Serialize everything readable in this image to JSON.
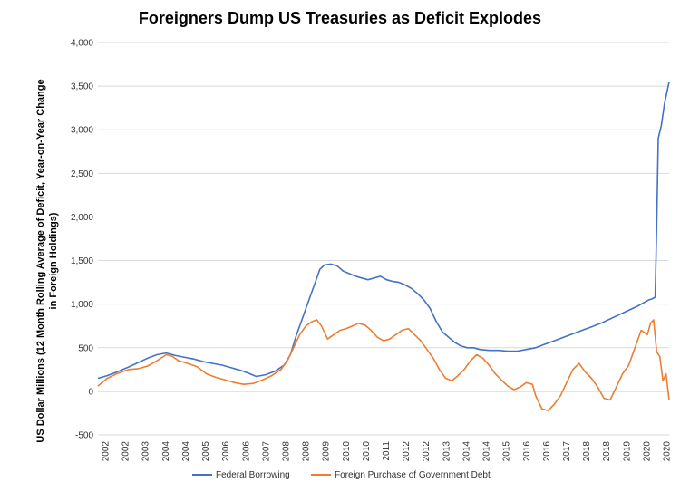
{
  "chart_data": {
    "type": "line",
    "title": "Foreigners Dump US Treasuries as Deficit Explodes",
    "ylabel_line1": "US Dollar Millions (12 Month Rolling Average of Deficit, Year-on-Year Change",
    "ylabel_line2": "in Foreign Holdings)",
    "xlabel": "",
    "ylim": [
      -500,
      4000
    ],
    "xlim": [
      2002,
      2020.4
    ],
    "y_ticks": [
      "-500",
      "0",
      "500",
      "1,000",
      "1,500",
      "2,000",
      "2,500",
      "3,000",
      "3,500",
      "4,000"
    ],
    "x_ticks": [
      "2002",
      "2002",
      "2003",
      "2004",
      "2004",
      "2005",
      "2006",
      "2006",
      "2007",
      "2008",
      "2008",
      "2009",
      "2010",
      "2010",
      "2011",
      "2012",
      "2012",
      "2013",
      "2014",
      "2014",
      "2015",
      "2016",
      "2016",
      "2017",
      "2018",
      "2018",
      "2019",
      "2020",
      "2020"
    ],
    "grid": "horizontal",
    "legend_position": "bottom",
    "series": [
      {
        "name": "Federal Borrowing",
        "color": "#4472C4",
        "x": [
          2002.0,
          2002.3,
          2002.6,
          2003.0,
          2003.3,
          2003.6,
          2003.9,
          2004.2,
          2004.5,
          2004.8,
          2005.1,
          2005.4,
          2005.7,
          2006.0,
          2006.3,
          2006.6,
          2006.9,
          2007.1,
          2007.4,
          2007.7,
          2008.0,
          2008.2,
          2008.4,
          2008.6,
          2008.8,
          2009.0,
          2009.15,
          2009.3,
          2009.5,
          2009.7,
          2009.9,
          2010.1,
          2010.3,
          2010.5,
          2010.7,
          2010.9,
          2011.1,
          2011.3,
          2011.5,
          2011.7,
          2011.9,
          2012.1,
          2012.3,
          2012.5,
          2012.7,
          2012.9,
          2013.1,
          2013.3,
          2013.5,
          2013.7,
          2013.9,
          2014.1,
          2014.3,
          2014.6,
          2014.9,
          2015.2,
          2015.5,
          2015.8,
          2016.1,
          2016.4,
          2016.7,
          2017.0,
          2017.3,
          2017.6,
          2017.9,
          2018.2,
          2018.5,
          2018.8,
          2019.1,
          2019.4,
          2019.6,
          2019.75,
          2019.85,
          2019.95,
          2020.0,
          2020.05,
          2020.15,
          2020.25,
          2020.4
        ],
        "values": [
          150,
          180,
          220,
          280,
          330,
          380,
          420,
          440,
          410,
          390,
          370,
          340,
          320,
          300,
          270,
          240,
          200,
          170,
          190,
          230,
          300,
          420,
          650,
          850,
          1050,
          1250,
          1400,
          1450,
          1460,
          1440,
          1380,
          1350,
          1320,
          1300,
          1280,
          1300,
          1320,
          1280,
          1260,
          1250,
          1220,
          1180,
          1120,
          1050,
          950,
          800,
          680,
          620,
          560,
          520,
          500,
          500,
          480,
          470,
          470,
          460,
          460,
          480,
          500,
          540,
          580,
          620,
          660,
          700,
          740,
          780,
          830,
          880,
          930,
          980,
          1020,
          1050,
          1060,
          1080,
          1900,
          2900,
          3050,
          3300,
          3550
        ]
      },
      {
        "name": "Foreign Purchase of Government Debt",
        "color": "#ED7D31",
        "x": [
          2002.0,
          2002.3,
          2002.6,
          2003.0,
          2003.3,
          2003.6,
          2003.9,
          2004.2,
          2004.4,
          2004.6,
          2004.9,
          2005.2,
          2005.5,
          2005.8,
          2006.1,
          2006.4,
          2006.7,
          2007.0,
          2007.3,
          2007.6,
          2007.9,
          2008.1,
          2008.3,
          2008.5,
          2008.7,
          2008.9,
          2009.05,
          2009.2,
          2009.4,
          2009.6,
          2009.8,
          2010.0,
          2010.2,
          2010.4,
          2010.6,
          2010.8,
          2011.0,
          2011.2,
          2011.4,
          2011.6,
          2011.8,
          2012.0,
          2012.2,
          2012.4,
          2012.6,
          2012.8,
          2013.0,
          2013.2,
          2013.4,
          2013.6,
          2013.8,
          2014.0,
          2014.2,
          2014.4,
          2014.6,
          2014.8,
          2015.0,
          2015.2,
          2015.4,
          2015.6,
          2015.8,
          2016.0,
          2016.1,
          2016.3,
          2016.5,
          2016.7,
          2016.9,
          2017.1,
          2017.3,
          2017.5,
          2017.7,
          2017.9,
          2018.1,
          2018.3,
          2018.5,
          2018.7,
          2018.9,
          2019.1,
          2019.3,
          2019.5,
          2019.7,
          2019.8,
          2019.9,
          2020.0,
          2020.1,
          2020.2,
          2020.3,
          2020.4
        ],
        "values": [
          60,
          150,
          200,
          250,
          260,
          290,
          350,
          420,
          400,
          350,
          320,
          280,
          200,
          160,
          130,
          100,
          80,
          90,
          130,
          180,
          250,
          350,
          500,
          650,
          750,
          800,
          820,
          750,
          600,
          650,
          700,
          720,
          750,
          780,
          760,
          700,
          620,
          580,
          600,
          650,
          700,
          720,
          650,
          580,
          480,
          380,
          250,
          150,
          120,
          180,
          250,
          350,
          420,
          380,
          300,
          200,
          130,
          60,
          20,
          50,
          100,
          80,
          -50,
          -200,
          -220,
          -150,
          -50,
          100,
          250,
          320,
          220,
          150,
          50,
          -80,
          -100,
          50,
          200,
          300,
          500,
          700,
          650,
          780,
          820,
          450,
          400,
          120,
          200,
          -100
        ]
      }
    ]
  }
}
